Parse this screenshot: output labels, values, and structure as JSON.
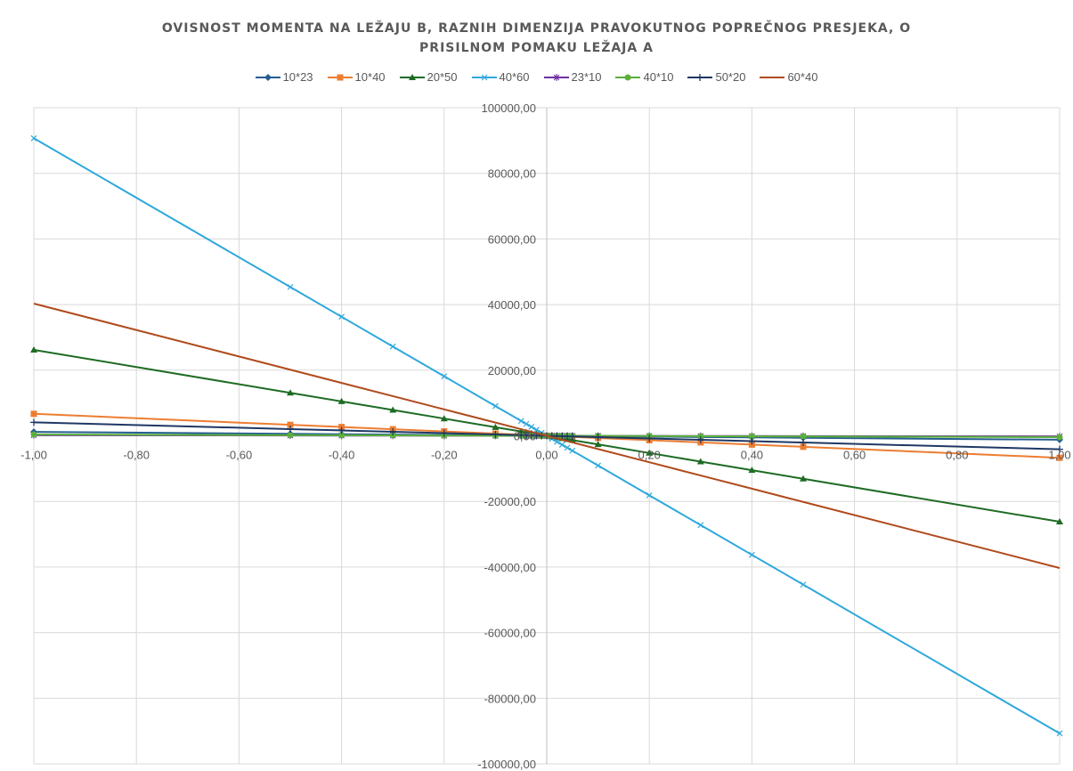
{
  "chart_data": {
    "type": "scatter",
    "title": "OVISNOST MOMENTA NA LEŽAJU B, RAZNIH DIMENZIJA PRAVOKUTNOG POPREČNOG PRESJEKA, O PRISILNOM POMAKU LEŽAJA A",
    "title_lines": [
      "OVISNOST MOMENTA NA LEŽAJU B, RAZNIH DIMENZIJA PRAVOKUTNOG POPREČNOG PRESJEKA, O",
      "PRISILNOM POMAKU LEŽAJA A"
    ],
    "xlabel": "",
    "ylabel": "",
    "xlim": [
      -1,
      1
    ],
    "ylim": [
      -100000,
      100000
    ],
    "x_ticks": [
      "-1,00",
      "-0,80",
      "-0,60",
      "-0,40",
      "-0,20",
      "0,00",
      "0,20",
      "0,40",
      "0,60",
      "0,80",
      "1,00"
    ],
    "y_ticks": [
      "100000,00",
      "80000,00",
      "60000,00",
      "40000,00",
      "20000,00",
      "0,00",
      "-20000,00",
      "-40000,00",
      "-60000,00",
      "-80000,00",
      "-100000,00"
    ],
    "grid": true,
    "legend_position": "top",
    "x": [
      -1.0,
      -0.5,
      -0.4,
      -0.3,
      -0.2,
      -0.1,
      -0.05,
      -0.04,
      -0.03,
      -0.02,
      -0.01,
      0.0,
      0.01,
      0.02,
      0.03,
      0.04,
      0.05,
      0.1,
      0.2,
      0.3,
      0.4,
      0.5,
      1.0
    ],
    "series": [
      {
        "name": "10*23",
        "color": "#255e91",
        "marker": "diamond",
        "slope": -1200
      },
      {
        "name": "10*40",
        "color": "#ed7d31",
        "marker": "square",
        "slope": -6700
      },
      {
        "name": "20*50",
        "color": "#1e6b24",
        "marker": "triangle",
        "slope": -26200
      },
      {
        "name": "40*60",
        "color": "#2ea8dc",
        "marker": "x",
        "slope": -90700
      },
      {
        "name": "23*10",
        "color": "#7030a0",
        "marker": "star",
        "slope": -200
      },
      {
        "name": "40*10",
        "color": "#5ab03c",
        "marker": "circle",
        "slope": -400
      },
      {
        "name": "50*20",
        "color": "#1f3864",
        "marker": "plus",
        "slope": -4100
      },
      {
        "name": "60*40",
        "color": "#b04a1c",
        "marker": "none",
        "slope": -40300
      }
    ]
  },
  "ui": {
    "background": "#ffffff",
    "grid_color": "#d9d9d9",
    "axis_color": "#bfbfbf",
    "text_color": "#595959"
  }
}
